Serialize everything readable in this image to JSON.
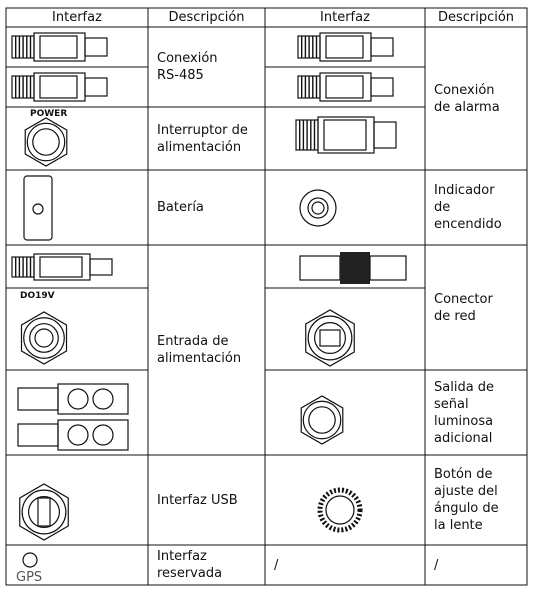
{
  "table": {
    "header": [
      "Interfaz",
      "Descripción",
      "Interfaz",
      "Descripción"
    ],
    "left_descriptions": [
      "Conexión\nRS-485",
      "Interruptor de\nalimentación",
      "Batería",
      "Entrada de\nalimentación",
      "Interfaz USB",
      "Interfaz\nreservada"
    ],
    "right_descriptions": [
      "Conexión\nde alarma",
      "Indicador\nde\nencendido",
      "Conector\nde red",
      "Salida de\nseñal\nluminosa\nadicional",
      "Botón de\najuste del\nángulo de\nla lente",
      "/",
      "/"
    ],
    "icon_labels": [
      "POWER",
      "DO19V",
      "GPS"
    ]
  }
}
